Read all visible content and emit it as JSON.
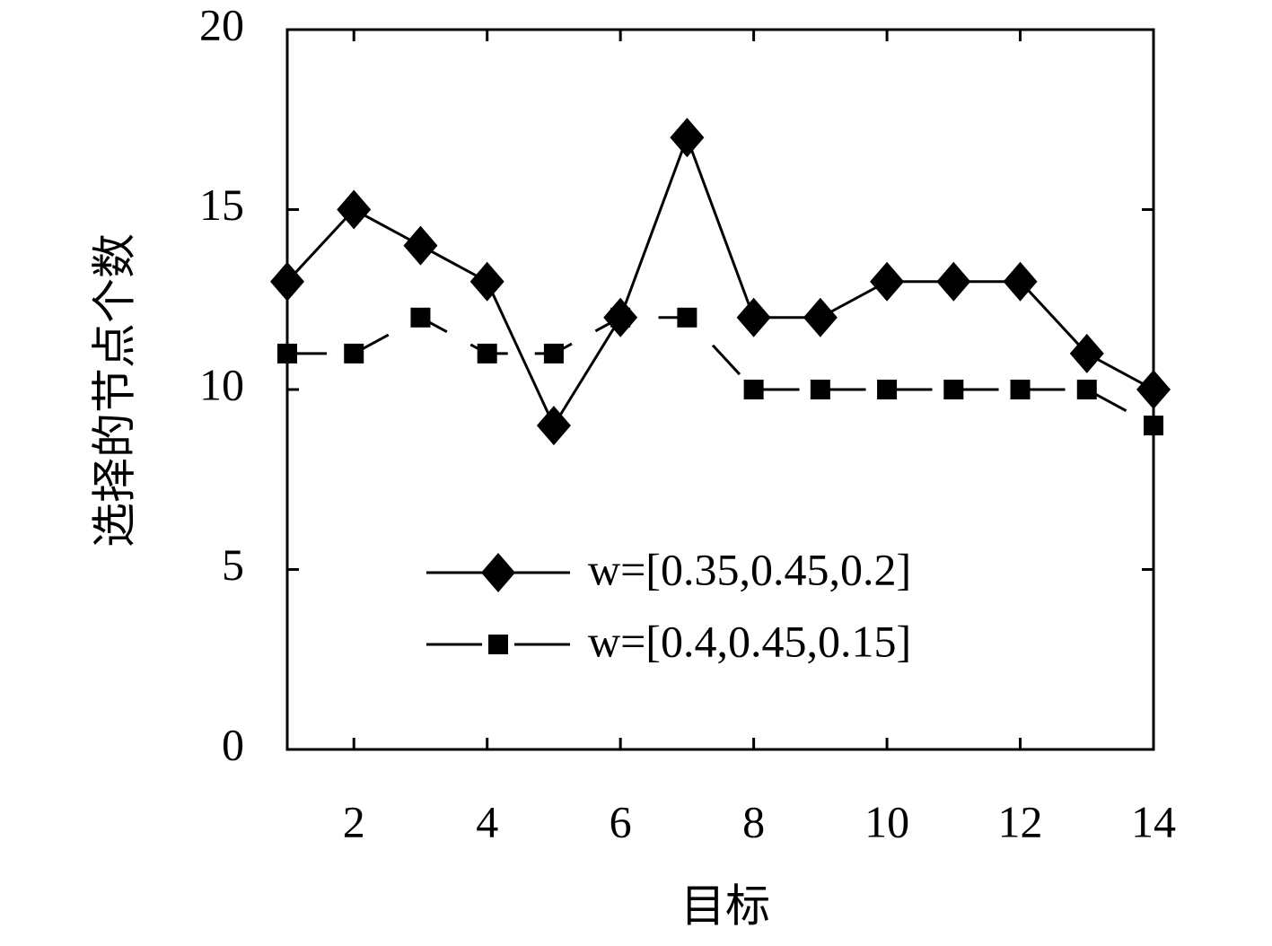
{
  "chart_data": {
    "type": "line",
    "x_label": "目标",
    "y_label": "选择的节点个数",
    "x": [
      1,
      2,
      3,
      4,
      5,
      6,
      7,
      8,
      9,
      10,
      11,
      12,
      13,
      14
    ],
    "series": [
      {
        "name": "w=[0.35,0.45,0.2]",
        "color": "#000000",
        "marker": "diamond",
        "dash": false,
        "values": [
          13,
          15,
          14,
          13,
          9,
          12,
          17,
          12,
          12,
          13,
          13,
          13,
          11,
          10
        ]
      },
      {
        "name": "w=[0.4,0.45,0.15]",
        "color": "#000000",
        "marker": "square",
        "dash": true,
        "values": [
          11,
          11,
          12,
          11,
          11,
          12,
          12,
          10,
          10,
          10,
          10,
          10,
          10,
          9
        ]
      }
    ],
    "xlim": [
      1,
      14
    ],
    "xticks": [
      2,
      4,
      6,
      8,
      10,
      12,
      14
    ],
    "ylim": [
      0,
      20
    ],
    "yticks": [
      0,
      5,
      10,
      15,
      20
    ],
    "grid": false
  }
}
